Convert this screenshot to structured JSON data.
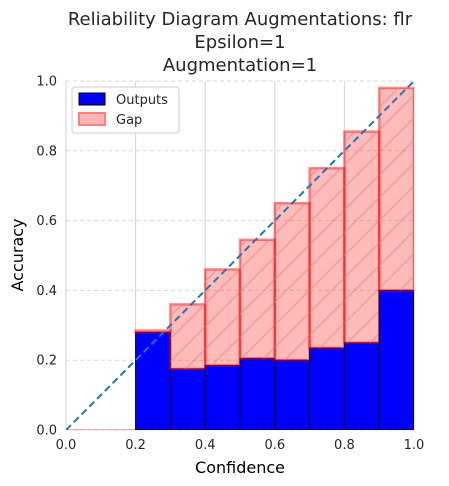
{
  "chart_data": {
    "type": "bar",
    "title_lines": [
      "Reliability Diagram Augmentations: flr",
      "Epsilon=1",
      "Augmentation=1"
    ],
    "xlabel": "Confidence",
    "ylabel": "Accuracy",
    "xlim": [
      0.0,
      1.0
    ],
    "ylim": [
      0.0,
      1.0
    ],
    "xticks": [
      "0.0",
      "0.2",
      "0.4",
      "0.6",
      "0.8",
      "1.0"
    ],
    "yticks": [
      "0.0",
      "0.2",
      "0.4",
      "0.6",
      "0.8",
      "1.0"
    ],
    "bin_edges": [
      0.0,
      0.1,
      0.2,
      0.3,
      0.4,
      0.5,
      0.6,
      0.7,
      0.8,
      0.9,
      1.0
    ],
    "series": [
      {
        "name": "Outputs",
        "color": "#0000ff",
        "values": [
          0.0,
          0.0,
          0.28,
          0.175,
          0.185,
          0.205,
          0.2,
          0.235,
          0.25,
          0.4
        ]
      },
      {
        "name": "Gap",
        "color": "#ff9999",
        "values": [
          0.0,
          0.0,
          0.285,
          0.36,
          0.46,
          0.545,
          0.65,
          0.75,
          0.855,
          0.98
        ]
      }
    ],
    "diagonal": {
      "style": "dashed",
      "color": "#1f77b4"
    },
    "grid": true,
    "legend_position": "top-left"
  }
}
